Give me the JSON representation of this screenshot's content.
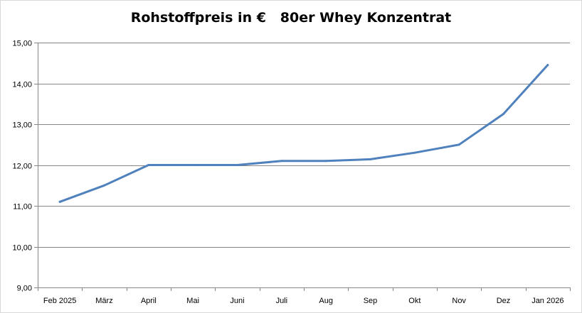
{
  "chart_data": {
    "type": "line",
    "title": "Rohstoffpreis in €   80er Whey Konzentrat",
    "xlabel": "",
    "ylabel": "",
    "categories": [
      "Feb 2025",
      "März",
      "April",
      "Mai",
      "Juni",
      "Juli",
      "Aug",
      "Sep",
      "Okt",
      "Nov",
      "Dez",
      "Jan 2026"
    ],
    "series": [
      {
        "values": [
          11.1,
          11.5,
          12.0,
          12.0,
          12.0,
          12.1,
          12.1,
          12.14,
          12.3,
          12.5,
          13.25,
          14.45
        ]
      }
    ],
    "ylim": [
      9,
      15
    ],
    "ytick_labels": [
      "9,00",
      "10,00",
      "11,00",
      "12,00",
      "13,00",
      "14,00",
      "15,00"
    ],
    "grid": true,
    "legend": "none",
    "colors": {
      "line": "#4f81bd",
      "grid": "#868686",
      "axis": "#868686"
    }
  }
}
